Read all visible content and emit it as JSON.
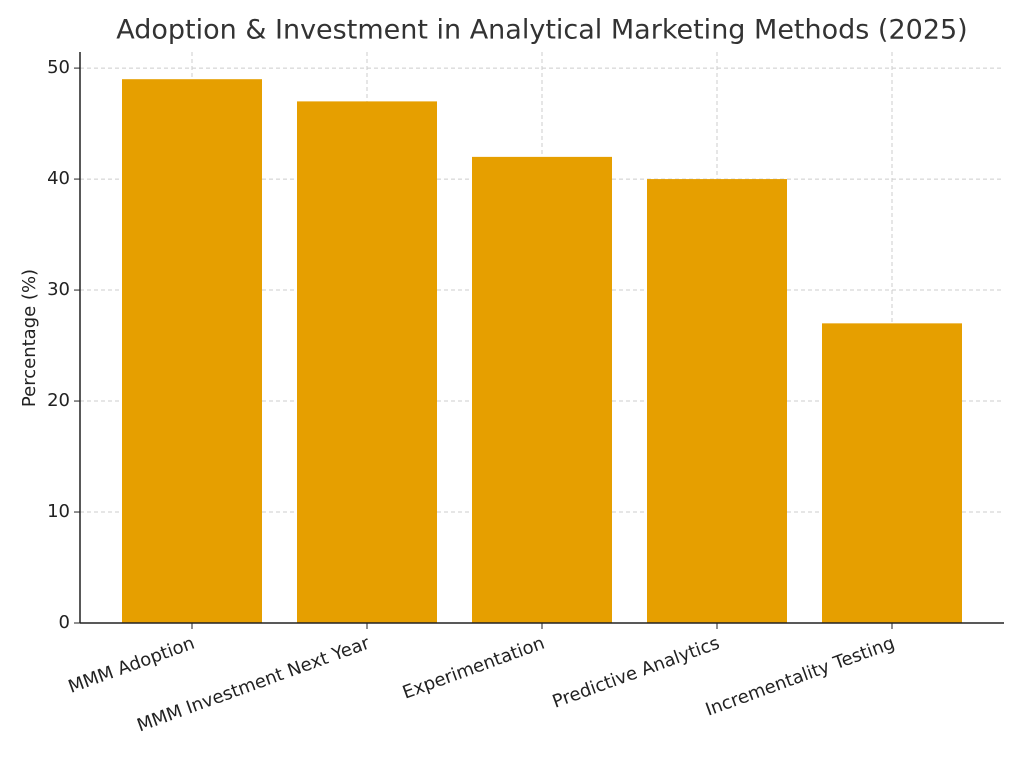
{
  "chart_data": {
    "type": "bar",
    "title": "Adoption & Investment in Analytical Marketing Methods (2025)",
    "y_label": "Percentage (%)",
    "categories": [
      "MMM Adoption",
      "MMM Investment Next Year",
      "Experimentation",
      "Predictive Analytics",
      "Incrementality Testing"
    ],
    "values": [
      49,
      47,
      42,
      40,
      27
    ],
    "color": "#e69f00",
    "ylim": [
      0,
      51.45
    ],
    "yticks": [
      0,
      10,
      20,
      30,
      40,
      50
    ],
    "grid": true
  }
}
